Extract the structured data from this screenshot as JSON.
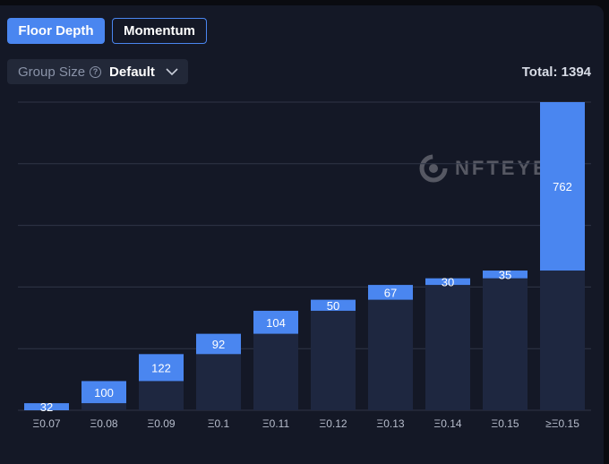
{
  "tabs": [
    {
      "label": "Floor Depth",
      "active": true
    },
    {
      "label": "Momentum",
      "active": false
    }
  ],
  "group_size": {
    "label": "Group Size",
    "value": "Default"
  },
  "total_label": "Total: 1394",
  "watermark": "NFTEYE",
  "colors": {
    "bar_top": "#4a86f0",
    "bar_base": "#1e2740",
    "grid": "#2f3547"
  },
  "chart_data": {
    "type": "bar",
    "title": "",
    "xlabel": "",
    "ylabel": "",
    "categories": [
      "Ξ0.07",
      "Ξ0.08",
      "Ξ0.09",
      "Ξ0.1",
      "Ξ0.11",
      "Ξ0.12",
      "Ξ0.13",
      "Ξ0.14",
      "Ξ0.15",
      "≥Ξ0.15"
    ],
    "series": [
      {
        "values": [
          32,
          100,
          122,
          92,
          104,
          50,
          67,
          30,
          35,
          762
        ]
      }
    ],
    "cumulative": [
      32,
      132,
      254,
      346,
      450,
      500,
      567,
      597,
      632,
      1394
    ],
    "ylim": [
      0,
      1394
    ],
    "grid": true
  }
}
